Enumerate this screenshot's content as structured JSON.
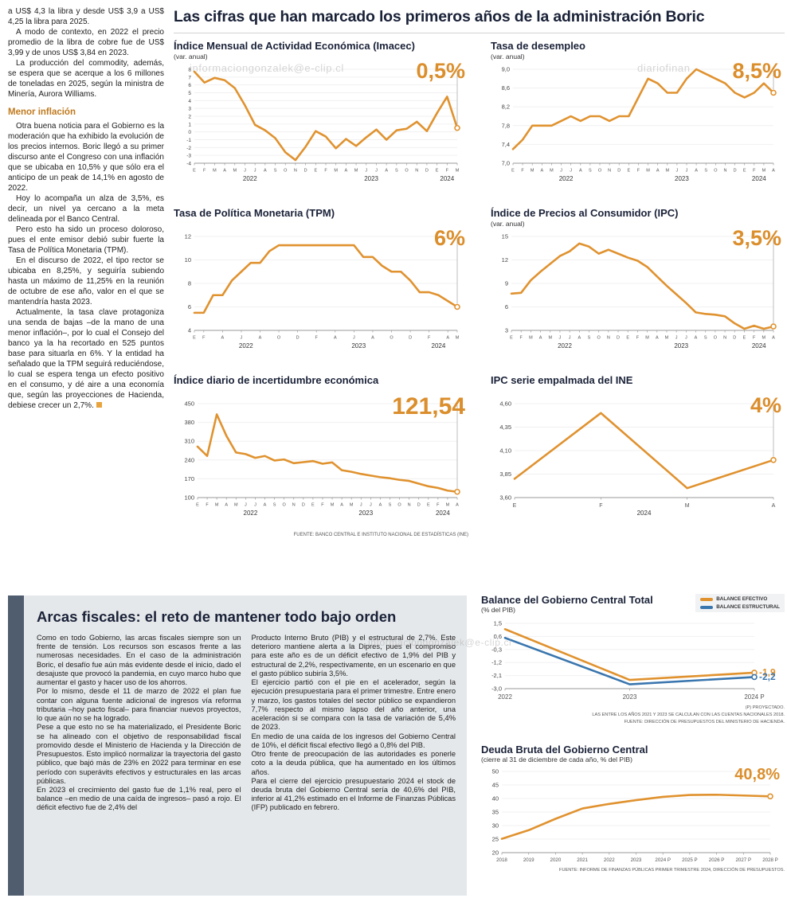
{
  "page": {
    "main_title": "Las cifras que han marcado los primeros años de la administración Boric",
    "watermarks": [
      "informaciongonzalek@e-clip.cl",
      "diariofinan",
      "informaciongonzalek@e-clip.cl"
    ]
  },
  "left_article": {
    "intro_paragraphs": [
      "a US$ 4,3 la libra y desde US$ 3,9 a US$ 4,25 la libra para 2025.",
      "A modo de contexto, en 2022 el precio promedio de la libra de cobre fue de US$ 3,99 y de unos US$ 3,84 en 2023.",
      "La producción del commodity, además, se espera que se acerque a los 6 millones de toneladas en 2025, según la ministra de Minería, Aurora Williams."
    ],
    "subhead": "Menor inflación",
    "inflation_paragraphs": [
      "Otra buena noticia para el Gobierno es la moderación que ha exhibido la evolución de los precios internos. Boric llegó a su primer discurso ante el Congreso con una inflación que se ubicaba en 10,5% y que sólo era el anticipo de un peak de 14,1% en agosto de 2022.",
      "Hoy lo acompaña un alza de 3,5%, es decir, un nivel ya cercano a la meta delineada por el Banco Central.",
      "Pero esto ha sido un proceso doloroso, pues el ente emisor debió subir fuerte la Tasa de Política Monetaria (TPM).",
      "En el discurso de 2022, el tipo rector se ubicaba en 8,25%, y seguiría subiendo hasta un máximo de 11,25% en la reunión de octubre de ese año, valor en el que se mantendría hasta 2023.",
      "Actualmente, la tasa clave protagoniza una senda de bajas –de la mano de una menor inflación–, por lo cual el Consejo del banco ya la ha recortado en 525 puntos base para situarla en 6%. Y la entidad ha señalado que la TPM seguirá reduciéndose, lo cual se espera tenga un efecto positivo en el consumo, y dé aire a una economía que, según las proyecciones de Hacienda, debiese crecer un 2,7%."
    ]
  },
  "fiscal_section": {
    "title": "Arcas fiscales: el reto de mantener todo bajo orden",
    "col1": [
      "Como en todo Gobierno, las arcas fiscales siempre son un frente de tensión. Los recursos son escasos frente a las numerosas necesidades. En el caso de la administración Boric, el desafío fue aún más evidente desde el inicio, dado el desajuste que provocó la pandemia, en cuyo marco hubo que aumentar el gasto y hacer uso de los ahorros.",
      "Por lo mismo, desde el 11 de marzo de 2022 el plan fue contar con alguna fuente adicional de ingresos vía reforma tributaria –hoy pacto fiscal– para financiar nuevos proyectos, lo que aún no se ha logrado.",
      "Pese a que esto no se ha materializado, el Presidente Boric se ha alineado con el objetivo de responsabilidad fiscal promovido desde el Ministerio de Hacienda y la Dirección de Presupuestos. Esto implicó normalizar la trayectoria del gasto público, que bajó más de 23% en 2022 para terminar en ese período con superávits efectivos y estructurales en las arcas públicas.",
      "En 2023 el crecimiento del gasto fue de 1,1% real, pero el balance –en medio de una caída de ingresos– pasó a rojo. El déficit efectivo fue de 2,4% del"
    ],
    "col2": [
      "Producto Interno Bruto (PIB) y el estructural de 2,7%. Este deterioro mantiene alerta a la Dipres, pues el compromiso para este año es de un déficit efectivo de 1,9% del PIB y estructural de 2,2%, respectivamente, en un escenario en que el gasto público subiría 3,5%.",
      "El ejercicio partió con el pie en el acelerador, según la ejecución presupuestaria para el primer trimestre. Entre enero y marzo, los gastos totales del sector público se expandieron 7,7% respecto al mismo lapso del año anterior, una aceleración si se compara con la tasa de variación de 5,4% de 2023.",
      "En medio de una caída de los ingresos del Gobierno Central de 10%, el déficit fiscal efectivo llegó a 0,8% del PIB.",
      "Otro frente de preocupación de las autoridades es ponerle coto a la deuda pública, que ha aumentado en los últimos años.",
      "Para el cierre del ejercicio presupuestario 2024 el stock de deuda bruta del Gobierno Central sería de 40,6% del PIB, inferior al 41,2% estimado en el Informe de Finanzas Públicas (IFP) publicado en febrero."
    ]
  },
  "colors": {
    "accent_orange": "#DB8E2C",
    "line_orange": "#E0922F",
    "line_blue": "#3A76AE",
    "navy": "#1A2238",
    "box_gray": "#E5E8EA",
    "accent_bar": "#4F5D6E"
  },
  "chart_data": [
    {
      "id": "imacec",
      "type": "line",
      "title": "Índice Mensual de Actividad Económica (Imacec)",
      "subtitle": "(var. anual)",
      "big_label": "0,5%",
      "xlabels": [
        "E",
        "F",
        "M",
        "A",
        "M",
        "J",
        "J",
        "A",
        "S",
        "O",
        "N",
        "D",
        "E",
        "F",
        "M",
        "A",
        "M",
        "J",
        "J",
        "A",
        "S",
        "O",
        "N",
        "D",
        "E",
        "F",
        "M"
      ],
      "years": [
        {
          "label": "2022",
          "start": 0,
          "end": 11
        },
        {
          "label": "2023",
          "start": 12,
          "end": 23
        },
        {
          "label": "2024",
          "start": 24,
          "end": 26
        }
      ],
      "series": [
        {
          "name": "Imacec",
          "color": "#E0922F",
          "values": [
            7.7,
            6.3,
            6.9,
            6.6,
            5.6,
            3.4,
            0.9,
            0.2,
            -0.8,
            -2.6,
            -3.6,
            -1.9,
            0.1,
            -0.6,
            -2.1,
            -0.9,
            -1.8,
            -0.7,
            0.3,
            -1.0,
            0.2,
            0.4,
            1.3,
            0.1,
            2.4,
            4.5,
            0.5
          ]
        }
      ],
      "ylim": [
        -4,
        8
      ],
      "ytick_vals": [
        8,
        7,
        6,
        5,
        4,
        3,
        2,
        1,
        0,
        -1,
        -2,
        -3,
        -4
      ],
      "ytick_labels": [
        "8",
        "7",
        "6",
        "5",
        "4",
        "3",
        "2",
        "1",
        "0",
        "-1",
        "-2",
        "-3",
        "-4"
      ],
      "guide": true,
      "ml": 26,
      "yfs": 6.5,
      "xfs": 5.5
    },
    {
      "id": "desempleo",
      "type": "line",
      "title": "Tasa de desempleo",
      "subtitle": "(var. anual)",
      "big_label": "8,5%",
      "xlabels": [
        "E",
        "F",
        "M",
        "A",
        "M",
        "J",
        "J",
        "A",
        "S",
        "O",
        "N",
        "D",
        "E",
        "F",
        "M",
        "A",
        "M",
        "J",
        "J",
        "A",
        "S",
        "O",
        "N",
        "D",
        "E",
        "F",
        "M",
        "A"
      ],
      "years": [
        {
          "label": "2022",
          "start": 0,
          "end": 11
        },
        {
          "label": "2023",
          "start": 12,
          "end": 23
        },
        {
          "label": "2024",
          "start": 24,
          "end": 27
        }
      ],
      "series": [
        {
          "name": "Tasa de desempleo",
          "color": "#E0922F",
          "values": [
            7.3,
            7.5,
            7.8,
            7.8,
            7.8,
            7.9,
            8.0,
            7.9,
            8.0,
            8.0,
            7.9,
            8.0,
            8.0,
            8.4,
            8.8,
            8.7,
            8.5,
            8.5,
            8.8,
            9.0,
            8.9,
            8.8,
            8.7,
            8.5,
            8.4,
            8.5,
            8.7,
            8.5
          ]
        }
      ],
      "ylim": [
        7.0,
        9.0
      ],
      "ytick_vals": [
        9.0,
        8.6,
        8.2,
        7.8,
        7.4,
        7.0
      ],
      "ytick_labels": [
        "9,0",
        "8,6",
        "8,2",
        "7,8",
        "7,4",
        "7,0"
      ],
      "guide": true,
      "ml": 28,
      "xfs": 5.5
    },
    {
      "id": "tpm",
      "type": "line",
      "title": "Tasa de Política Monetaria (TPM)",
      "subtitle": "",
      "big_label": "6%",
      "xlabels": [
        "E",
        "F",
        "",
        "A",
        "",
        "J",
        "",
        "A",
        "",
        "O",
        "",
        "D",
        "",
        "F",
        "",
        "A",
        "",
        "J",
        "",
        "A",
        "",
        "O",
        "",
        "D",
        "",
        "F",
        "",
        "A",
        "M"
      ],
      "years": [
        {
          "label": "2022",
          "start": 0,
          "end": 11
        },
        {
          "label": "2023",
          "start": 12,
          "end": 23
        },
        {
          "label": "2024",
          "start": 24,
          "end": 28
        }
      ],
      "series": [
        {
          "name": "TPM",
          "color": "#E0922F",
          "values": [
            5.5,
            5.5,
            7.0,
            7.0,
            8.25,
            9.0,
            9.75,
            9.75,
            10.75,
            11.25,
            11.25,
            11.25,
            11.25,
            11.25,
            11.25,
            11.25,
            11.25,
            11.25,
            10.25,
            10.25,
            9.5,
            9.0,
            9.0,
            8.25,
            7.25,
            7.25,
            7.0,
            6.5,
            6.0
          ]
        }
      ],
      "ylim": [
        4,
        12
      ],
      "ytick_vals": [
        12,
        10,
        8,
        6,
        4
      ],
      "ytick_labels": [
        "12",
        "10",
        "8",
        "6",
        "4"
      ],
      "guide": true,
      "ml": 26,
      "xfs": 5.5
    },
    {
      "id": "ipc",
      "type": "line",
      "title": "Índice de Precios al Consumidor (IPC)",
      "subtitle": "(var. anual)",
      "big_label": "3,5%",
      "xlabels": [
        "E",
        "F",
        "M",
        "A",
        "M",
        "J",
        "J",
        "A",
        "S",
        "O",
        "N",
        "D",
        "E",
        "F",
        "M",
        "A",
        "M",
        "J",
        "J",
        "A",
        "S",
        "O",
        "N",
        "D",
        "E",
        "F",
        "M",
        "A"
      ],
      "years": [
        {
          "label": "2022",
          "start": 0,
          "end": 11
        },
        {
          "label": "2023",
          "start": 12,
          "end": 23
        },
        {
          "label": "2024",
          "start": 24,
          "end": 27
        }
      ],
      "series": [
        {
          "name": "IPC",
          "color": "#E0922F",
          "values": [
            7.7,
            7.8,
            9.4,
            10.5,
            11.5,
            12.5,
            13.1,
            14.1,
            13.7,
            12.8,
            13.3,
            12.8,
            12.3,
            11.9,
            11.1,
            9.9,
            8.7,
            7.6,
            6.5,
            5.3,
            5.1,
            5.0,
            4.8,
            3.9,
            3.2,
            3.6,
            3.2,
            3.5
          ]
        }
      ],
      "ylim": [
        3,
        15
      ],
      "ytick_vals": [
        15,
        12,
        9,
        6,
        3
      ],
      "ytick_labels": [
        "15",
        "12",
        "9",
        "6",
        "3"
      ],
      "guide": true,
      "ml": 26,
      "xfs": 5.5
    },
    {
      "id": "incertidumbre",
      "type": "line",
      "title": "Índice diario de incertidumbre económica",
      "subtitle": "",
      "big_label": "121,54",
      "xlabels": [
        "E",
        "F",
        "M",
        "A",
        "M",
        "J",
        "J",
        "A",
        "S",
        "O",
        "N",
        "D",
        "E",
        "F",
        "M",
        "A",
        "M",
        "J",
        "J",
        "A",
        "S",
        "O",
        "N",
        "D",
        "E",
        "F",
        "M",
        "A"
      ],
      "years": [
        {
          "label": "2022",
          "start": 0,
          "end": 11
        },
        {
          "label": "2023",
          "start": 12,
          "end": 23
        },
        {
          "label": "2024",
          "start": 24,
          "end": 27
        }
      ],
      "series": [
        {
          "name": "Incertidumbre económica",
          "color": "#E0922F",
          "values": [
            290,
            255,
            410,
            330,
            268,
            262,
            248,
            255,
            238,
            242,
            228,
            232,
            236,
            226,
            231,
            202,
            196,
            188,
            182,
            176,
            172,
            166,
            162,
            152,
            142,
            136,
            126,
            121.54
          ]
        }
      ],
      "ylim": [
        100,
        450
      ],
      "ytick_vals": [
        450,
        380,
        310,
        240,
        170,
        100
      ],
      "ytick_labels": [
        "450",
        "380",
        "310",
        "240",
        "170",
        "100"
      ],
      "guide": true,
      "ml": 30,
      "xfs": 5.5,
      "source": "FUENTE: BANCO CENTRAL E INSTITUTO NACIONAL DE ESTADÍSTICAS (INE)"
    },
    {
      "id": "ipc_ine",
      "type": "line",
      "title": "IPC serie empalmada del INE",
      "subtitle": "",
      "big_label": "4%",
      "xlabels": [
        "E",
        "F",
        "M",
        "A"
      ],
      "years": [
        {
          "label": "2024",
          "start": 0,
          "end": 3
        }
      ],
      "series": [
        {
          "name": "IPC serie empalmada",
          "color": "#E0922F",
          "values": [
            3.8,
            4.5,
            3.7,
            4.0
          ]
        }
      ],
      "ylim": [
        3.6,
        4.6
      ],
      "ytick_vals": [
        4.6,
        4.35,
        4.1,
        3.85,
        3.6
      ],
      "ytick_labels": [
        "4,60",
        "4,35",
        "4,10",
        "3,85",
        "3,60"
      ],
      "guide": true,
      "ml": 30,
      "xfs": 7
    },
    {
      "id": "balance",
      "type": "line",
      "title": "Balance del Gobierno Central Total",
      "subtitle": "(% del PIB)",
      "legend": [
        {
          "label": "BALANCE EFECTIVO",
          "color": "#E0922F"
        },
        {
          "label": "BALANCE ESTRUCTURAL",
          "color": "#3A76AE"
        }
      ],
      "xlabels": [
        "2022",
        "2023",
        "2024 P"
      ],
      "series": [
        {
          "name": "BALANCE EFECTIVO",
          "color": "#E0922F",
          "values": [
            1.1,
            -2.4,
            -1.9
          ],
          "end_label": "-1,9"
        },
        {
          "name": "BALANCE ESTRUCTURAL",
          "color": "#3A76AE",
          "values": [
            0.5,
            -2.7,
            -2.2
          ],
          "end_label": "-2,2"
        }
      ],
      "ylim": [
        -3.0,
        1.5
      ],
      "ytick_vals": [
        1.5,
        0.6,
        -0.3,
        -1.2,
        -2.1,
        -3.0
      ],
      "ytick_labels": [
        "1,5",
        "0,6",
        "-0,3",
        "-1,2",
        "-2,1",
        "-3,0"
      ],
      "guide": false,
      "ml": 30,
      "mr": 38,
      "xfs": 8,
      "notes": [
        "(P) PROYECTADO.",
        "LAS ENTRE LOS AÑOS 2021 Y 2023 SE CALCULAN CON LAS CUENTAS NACIONALES 2018.",
        "FUENTE: DIRECCIÓN DE PRESUPUESTOS DEL MINISTERIO DE HACIENDA."
      ]
    },
    {
      "id": "deuda",
      "type": "line",
      "title": "Deuda Bruta del Gobierno Central",
      "subtitle": "(cierre al 31 de diciembre de cada año, % del PIB)",
      "big_label": "40,8%",
      "xlabels": [
        "2018",
        "2019",
        "2020",
        "2021",
        "2022",
        "2023",
        "2024 P",
        "2025 P",
        "2026 P",
        "2027 P",
        "2028 P"
      ],
      "series": [
        {
          "name": "Deuda bruta",
          "color": "#E0922F",
          "values": [
            25.1,
            28.3,
            32.5,
            36.3,
            38.0,
            39.4,
            40.6,
            41.3,
            41.4,
            41.1,
            40.8
          ]
        }
      ],
      "ylim": [
        20,
        50
      ],
      "ytick_vals": [
        50,
        45,
        40,
        35,
        30,
        25,
        20
      ],
      "ytick_labels": [
        "50",
        "45",
        "40",
        "35",
        "30",
        "25",
        "20"
      ],
      "guide": false,
      "ml": 26,
      "mr": 18,
      "xfs": 6.2,
      "source": "FUENTE: INFORME DE FINANZAS PÚBLICAS PRIMER TRIMESTRE 2024, DIRECCIÓN DE PRESUPUESTOS."
    }
  ]
}
